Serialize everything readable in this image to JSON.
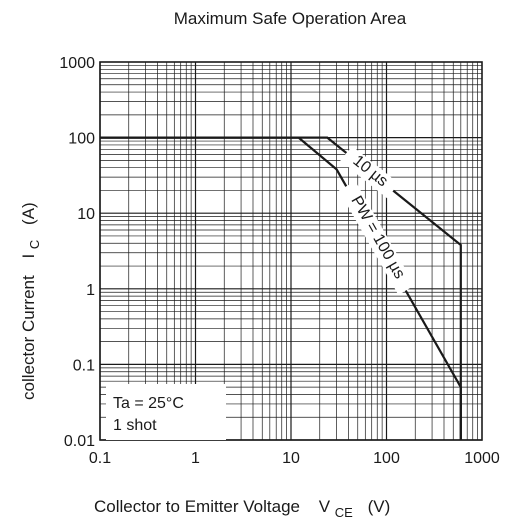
{
  "chart_data": {
    "type": "line",
    "title": "Maximum Safe Operation Area",
    "xlabel": {
      "main": "Collector to Emitter Voltage",
      "symbol": "V",
      "subscript": "CE",
      "unit": "(V)"
    },
    "ylabel": {
      "main": "collector Current",
      "symbol": "I",
      "subscript": "C",
      "unit": "(A)"
    },
    "x_scale": "log",
    "y_scale": "log",
    "xlim": [
      0.1,
      1000
    ],
    "ylim": [
      0.01,
      1000
    ],
    "x_ticks": [
      "0.1",
      "1",
      "10",
      "100",
      "1000"
    ],
    "y_ticks": [
      "0.01",
      "0.1",
      "1",
      "10",
      "100",
      "1000"
    ],
    "grid": true,
    "series": [
      {
        "name": "10 µs",
        "x": [
          0.1,
          24,
          600,
          600
        ],
        "y": [
          100,
          100,
          3.8,
          0.01
        ]
      },
      {
        "name": "PW = 100 µs",
        "x": [
          0.1,
          12,
          30,
          600,
          600
        ],
        "y": [
          100,
          100,
          38,
          0.05,
          0.01
        ]
      }
    ],
    "annotations": {
      "series_label_1": "10 µs",
      "series_label_2": "PW = 100 µs",
      "condition_line_1": "Ta = 25°C",
      "condition_line_2": "1 shot"
    }
  }
}
